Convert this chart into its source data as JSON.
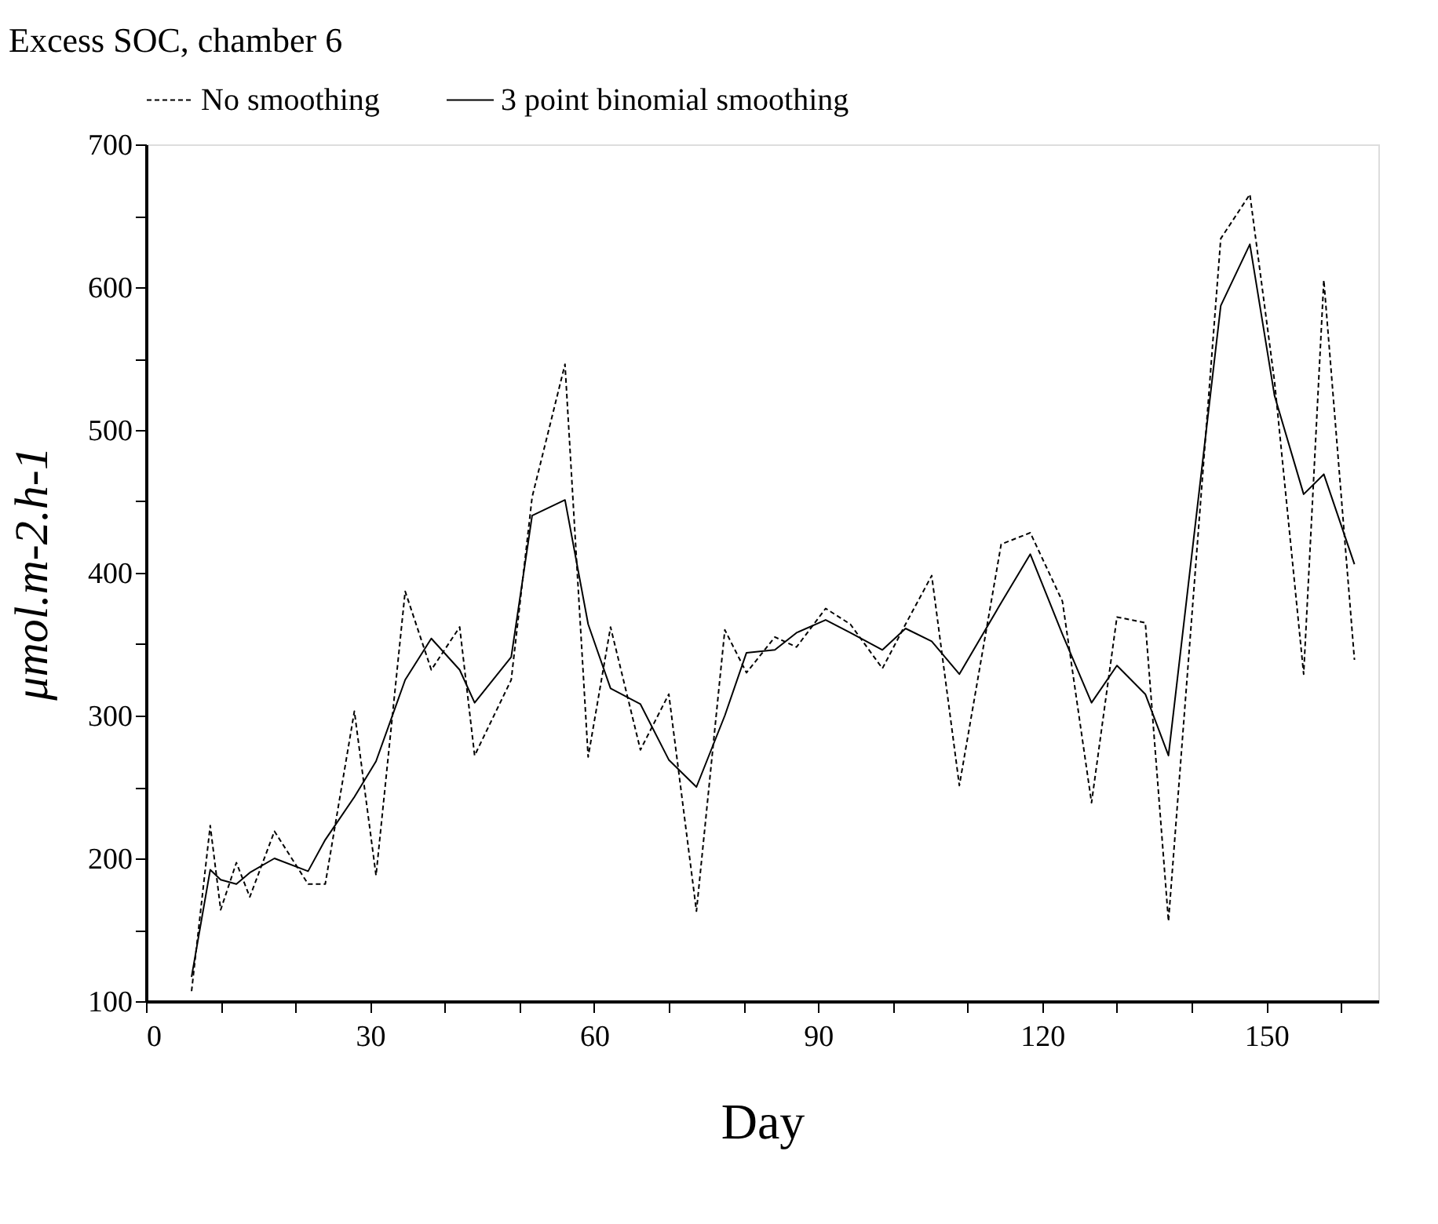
{
  "chart_data": {
    "type": "line",
    "title": "Excess SOC, chamber 6",
    "xlabel": "Day",
    "ylabel": "μmol.m-2.h-1",
    "x": [
      6.1,
      8.6,
      10.0,
      12.1,
      13.9,
      17.2,
      21.7,
      24.0,
      27.9,
      30.8,
      34.7,
      38.2,
      42.0,
      44.0,
      48.9,
      51.7,
      56.1,
      59.2,
      62.2,
      66.2,
      70.0,
      73.7,
      77.5,
      80.4,
      84.2,
      87.1,
      91.0,
      94.3,
      98.6,
      101.7,
      105.2,
      108.9,
      114.5,
      118.4,
      122.7,
      126.6,
      130.0,
      133.8,
      136.9,
      143.9,
      147.8,
      151.1,
      155.0,
      157.7,
      161.8
    ],
    "series": [
      {
        "name": "No smoothing",
        "color": "#000000",
        "line_style": "dashed",
        "values": [
          107,
          223,
          164,
          197,
          173,
          219,
          182,
          182,
          303,
          188,
          387,
          332,
          362,
          272,
          325,
          453,
          546,
          271,
          362,
          276,
          315,
          163,
          360,
          330,
          355,
          348,
          375,
          364,
          333,
          364,
          398,
          251,
          420,
          428,
          380,
          239,
          369,
          365,
          156,
          634,
          665,
          534,
          329,
          605,
          339
        ]
      },
      {
        "name": "3 point binomial smoothing",
        "color": "#000000",
        "line_style": "solid",
        "values": [
          117,
          192,
          185,
          182,
          190,
          200,
          191,
          213,
          243,
          268,
          325,
          354,
          332,
          309,
          341,
          440,
          451,
          364,
          319,
          308,
          269,
          250,
          300,
          344,
          346,
          358,
          367,
          358,
          346,
          361,
          352,
          329,
          379,
          413,
          357,
          309,
          335,
          315,
          272,
          587,
          630,
          524,
          455,
          469,
          406
        ]
      }
    ],
    "xlim": [
      0,
      165
    ],
    "ylim": [
      100,
      700
    ],
    "xticks": [
      0,
      {
        "value": 10,
        "label": null
      },
      {
        "value": 20,
        "label": null
      },
      30,
      {
        "value": 40,
        "label": null
      },
      {
        "value": 50,
        "label": null
      },
      60,
      {
        "value": 70,
        "label": null
      },
      {
        "value": 80,
        "label": null
      },
      90,
      {
        "value": 100,
        "label": null
      },
      {
        "value": 110,
        "label": null
      },
      120,
      {
        "value": 130,
        "label": null
      },
      {
        "value": 140,
        "label": null
      },
      150,
      {
        "value": 160,
        "label": null
      }
    ],
    "yticks": [
      100,
      {
        "value": 150,
        "label": null
      },
      200,
      {
        "value": 250,
        "label": null
      },
      300,
      {
        "value": 350,
        "label": null
      },
      400,
      {
        "value": 450,
        "label": null
      },
      500,
      {
        "value": 550,
        "label": null
      },
      600,
      {
        "value": 650,
        "label": null
      },
      700
    ],
    "grid": false,
    "legend": "top",
    "marker": "none"
  }
}
